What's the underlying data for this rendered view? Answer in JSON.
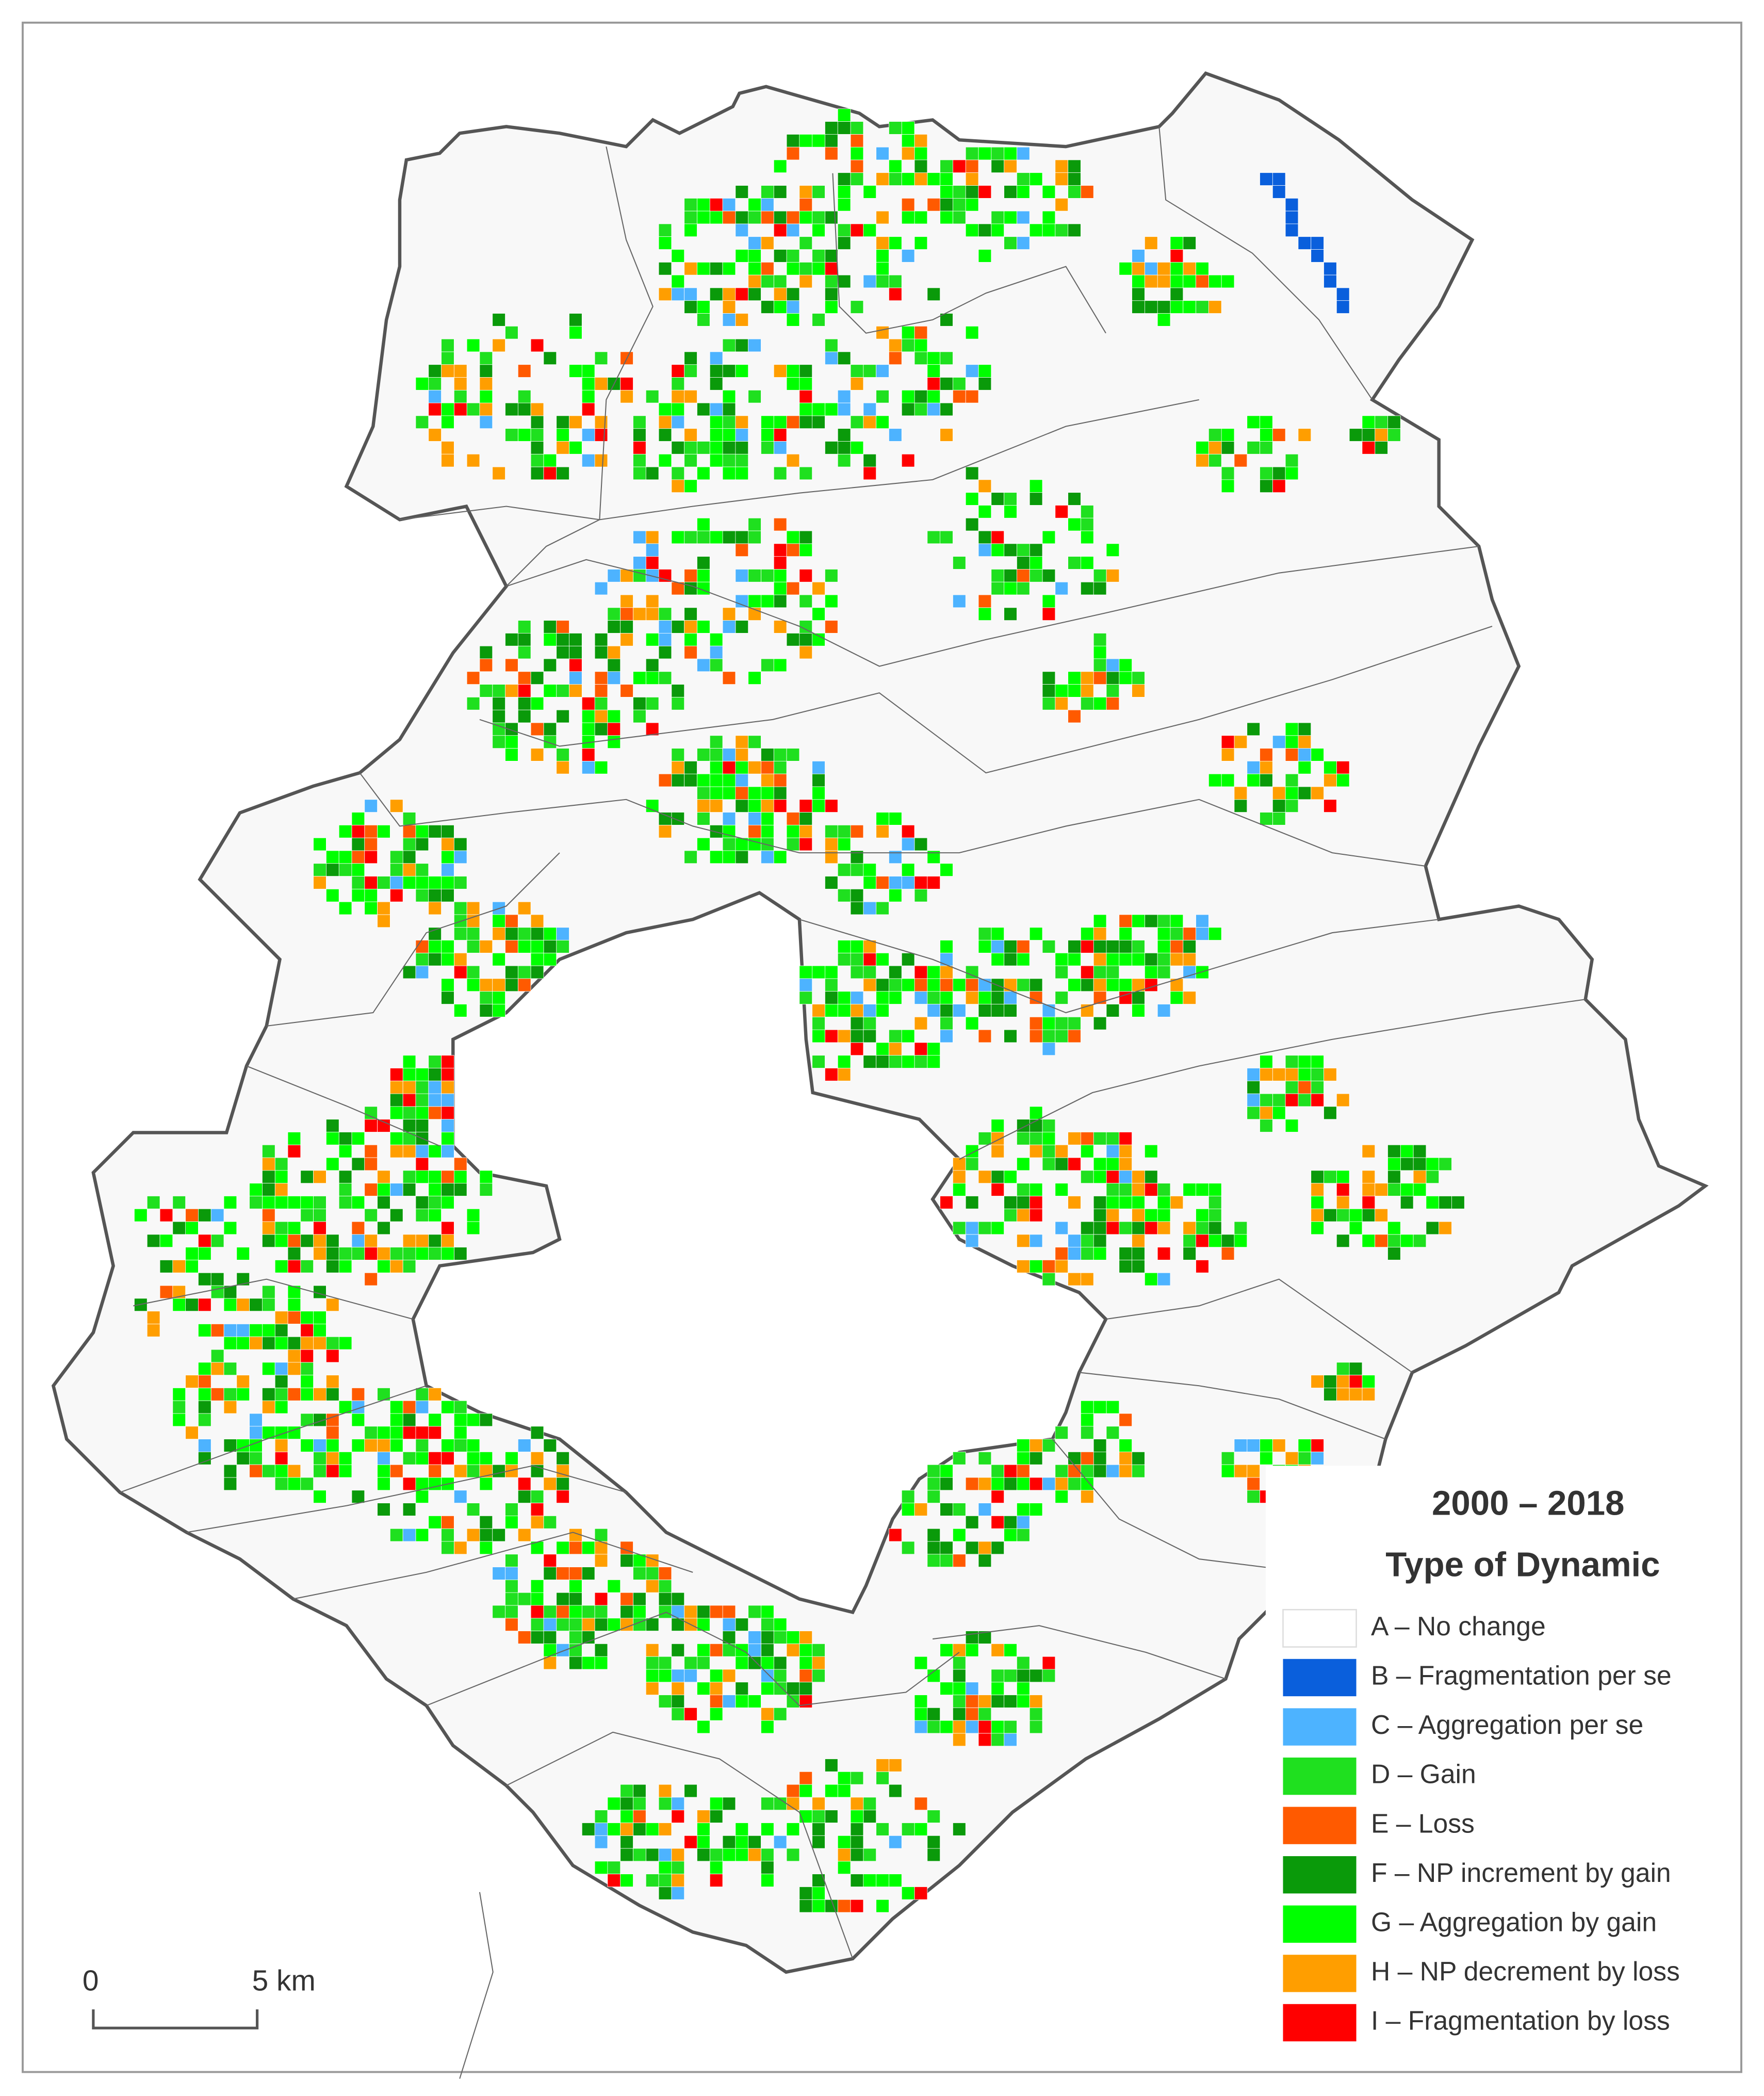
{
  "legend": {
    "period": "2000 – 2018",
    "title": "Type of Dynamic",
    "items": [
      {
        "label": "A – No change",
        "color": "#ffffff"
      },
      {
        "label": "B – Fragmentation per se",
        "color": "#0a5fdc"
      },
      {
        "label": "C – Aggregation per se",
        "color": "#4db3ff"
      },
      {
        "label": "D – Gain",
        "color": "#1fe01f"
      },
      {
        "label": "E – Loss",
        "color": "#ff5a00"
      },
      {
        "label": "F – NP increment by gain",
        "color": "#0a9a0a"
      },
      {
        "label": "G – Aggregation by gain",
        "color": "#00ff00"
      },
      {
        "label": "H – NP decrement by loss",
        "color": "#ff9e00"
      },
      {
        "label": "I – Fragmentation by loss",
        "color": "#ff0000"
      }
    ]
  },
  "scale_bar": {
    "labels": [
      "0",
      "5 km"
    ]
  }
}
